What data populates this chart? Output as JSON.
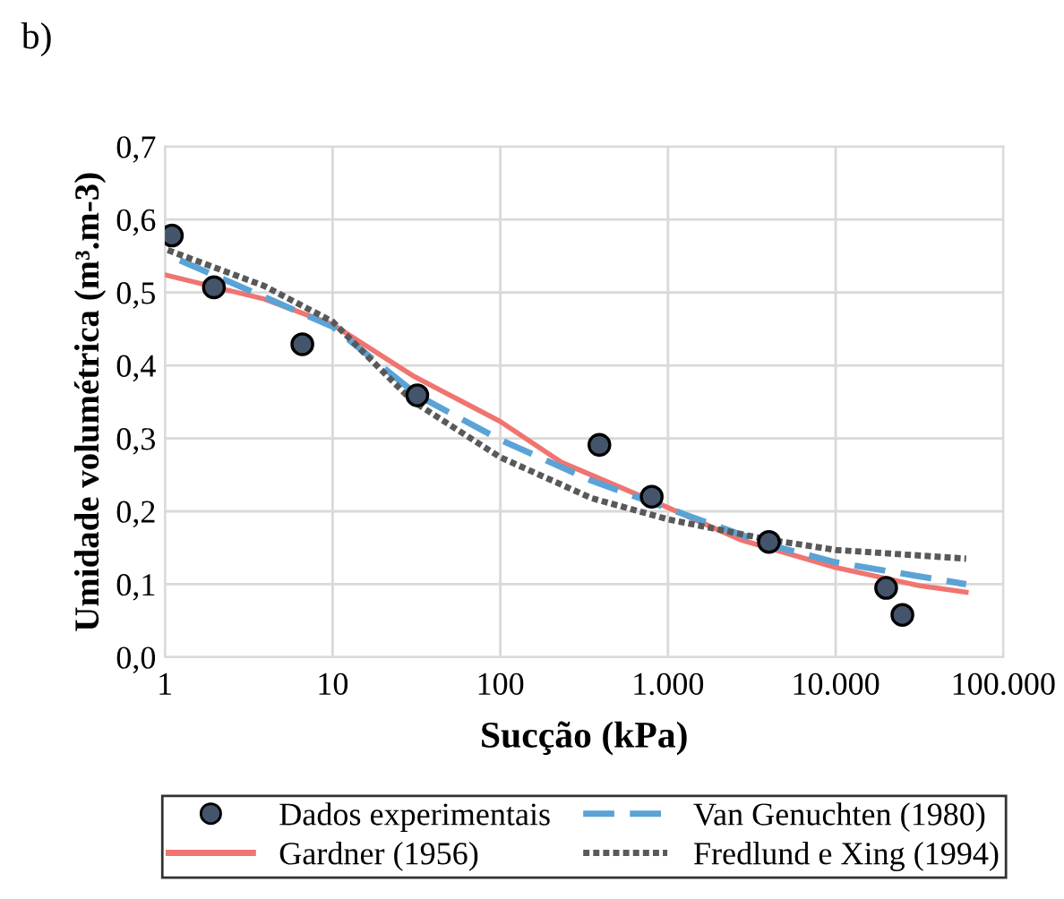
{
  "chart_data": {
    "type": "line",
    "xlabel": "Sucção (kPa)",
    "ylabel": "Umidade volumétrica (m³.m-3)",
    "annotations": [
      "b)"
    ],
    "log": "x",
    "grid": true,
    "legend": "bottom",
    "xlim": [
      1,
      100000
    ],
    "xticks": [
      1,
      10,
      100,
      {
        "value": 1000,
        "label": "1.000"
      },
      {
        "value": 10000,
        "label": "10.000"
      },
      {
        "value": 100000,
        "label": "100.000"
      }
    ],
    "ylim": [
      0,
      0.7
    ],
    "yticks": [
      {
        "value": 0,
        "label": "0,0"
      },
      {
        "value": 0.1,
        "label": "0,1"
      },
      {
        "value": 0.2,
        "label": "0,2"
      },
      {
        "value": 0.3,
        "label": "0,3"
      },
      {
        "value": 0.4,
        "label": "0,4"
      },
      {
        "value": 0.5,
        "label": "0,5"
      },
      {
        "value": 0.6,
        "label": "0,6"
      },
      {
        "value": 0.7,
        "label": "0,7"
      }
    ],
    "series": [
      {
        "name": "Dados experimentais",
        "type": "scatter",
        "marker": "circle",
        "color": "#44546a",
        "x": [
          1.1,
          1.96,
          6.6,
          32,
          390,
          800,
          4000,
          20000,
          25000
        ],
        "values": [
          0.578,
          0.507,
          0.429,
          0.359,
          0.291,
          0.22,
          0.158,
          0.095,
          0.058
        ]
      },
      {
        "name": "Gardner (1956)",
        "type": "line",
        "line_style": "solid",
        "color": "#f07470",
        "x": [
          1,
          3.9,
          10,
          30,
          100,
          232,
          1000,
          2700,
          10000,
          31500,
          60000
        ],
        "values": [
          0.524,
          0.491,
          0.456,
          0.386,
          0.323,
          0.267,
          0.205,
          0.161,
          0.123,
          0.098,
          0.089
        ]
      },
      {
        "name": "Van Genuchten (1980)",
        "type": "line",
        "line_style": "dashed",
        "color": "#5ba3d6",
        "x": [
          1.23,
          10,
          32.6,
          100,
          350,
          1000,
          4000,
          10000,
          60000
        ],
        "values": [
          0.544,
          0.453,
          0.358,
          0.298,
          0.242,
          0.204,
          0.154,
          0.13,
          0.1
        ]
      },
      {
        "name": "Fredlund e Xing (1994)",
        "type": "line",
        "line_style": "dotted",
        "color": "#595959",
        "x": [
          1.04,
          3.9,
          10,
          30,
          100,
          350,
          1000,
          4000,
          10000,
          60000
        ],
        "values": [
          0.558,
          0.509,
          0.46,
          0.351,
          0.274,
          0.218,
          0.189,
          0.161,
          0.147,
          0.135
        ]
      }
    ]
  }
}
